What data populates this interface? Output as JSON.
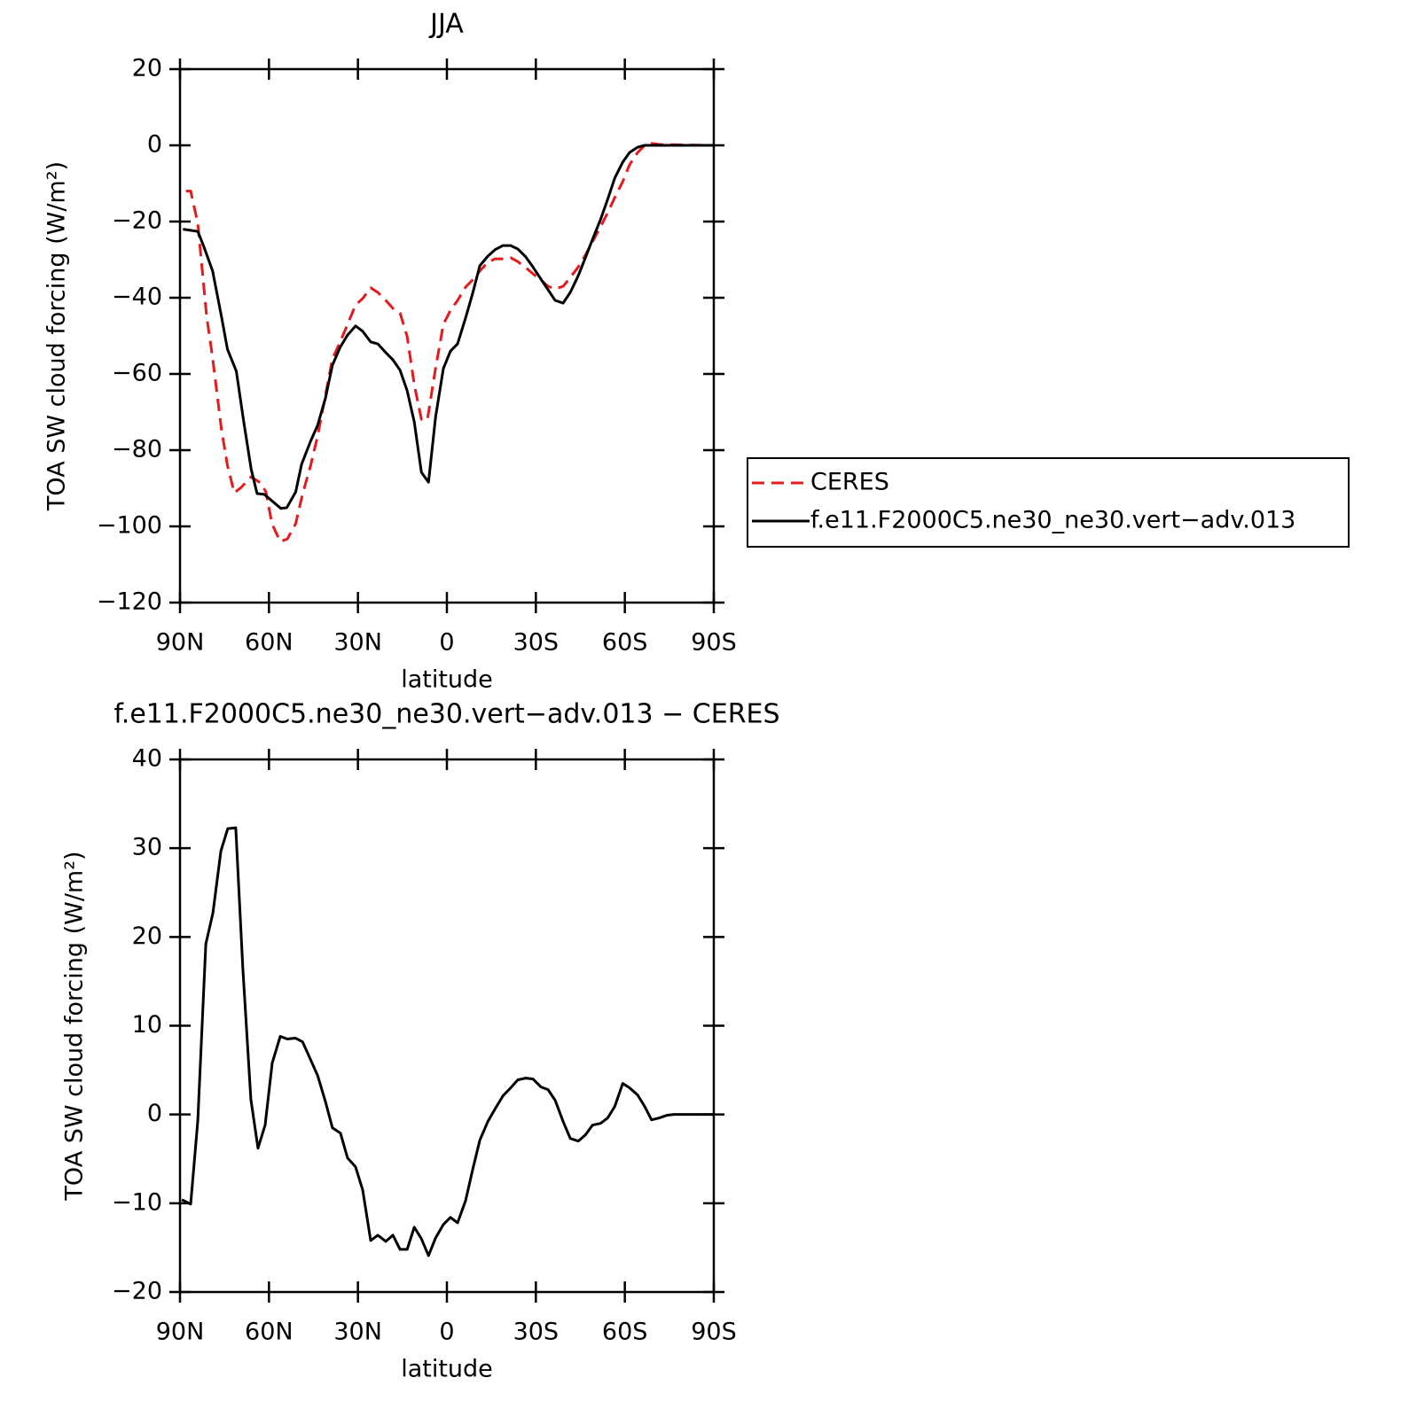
{
  "chart_data": [
    {
      "type": "line",
      "title": "JJA",
      "xlabel": "latitude",
      "ylabel": "TOA SW cloud forcing (W/m²)",
      "xlim": [
        90,
        -90
      ],
      "xticks": [
        {
          "value": 90,
          "label": "90N"
        },
        {
          "value": 60,
          "label": "60N"
        },
        {
          "value": 30,
          "label": "30N"
        },
        0,
        {
          "value": -30,
          "label": "30S"
        },
        {
          "value": -60,
          "label": "60S"
        },
        {
          "value": -90,
          "label": "90S"
        }
      ],
      "ylim": [
        -120,
        20
      ],
      "yticks": [
        {
          "value": -120,
          "label": "−120"
        },
        {
          "value": -100,
          "label": "−100"
        },
        {
          "value": -80,
          "label": "−80"
        },
        {
          "value": -60,
          "label": "−60"
        },
        {
          "value": -40,
          "label": "−40"
        },
        {
          "value": -20,
          "label": "−20"
        },
        0,
        20
      ],
      "legend": "right",
      "series": [
        {
          "name": "CERES",
          "color": "#e41a1c",
          "dash": true,
          "x": [
            88,
            86.4,
            84,
            81,
            79,
            76,
            74,
            71.7,
            69.4,
            66,
            62.8,
            61,
            59,
            56.2,
            53.8,
            51,
            48.7,
            46,
            43.6,
            41,
            38.6,
            35.9,
            33.5,
            30.8,
            28.4,
            25.7,
            23.3,
            20.6,
            18.2,
            15.8,
            13.4,
            11,
            8.6,
            6.6,
            3.8,
            1.2,
            -1.2,
            -3.6,
            -6.3,
            -8.7,
            -11.1,
            -13.8,
            -16.2,
            -18.9,
            -21.5,
            -23.9,
            -26.6,
            -29,
            -31.7,
            -34.1,
            -36.5,
            -39.2,
            -41.6,
            -44.3,
            -46.7,
            -49.1,
            -51.8,
            -54.2,
            -56.6,
            -59.3,
            -61.6,
            -64.3,
            -66.7,
            -69,
            -72,
            -90
          ],
          "values": [
            -12,
            -12,
            -20.5,
            -45,
            -55.8,
            -74.7,
            -84,
            -91.2,
            -89.8,
            -87,
            -88.6,
            -91,
            -99.3,
            -104,
            -103.3,
            -99.3,
            -91.6,
            -84.2,
            -76.3,
            -65.8,
            -56,
            -51.4,
            -47,
            -41.9,
            -40.2,
            -37.4,
            -38.6,
            -40.7,
            -42.8,
            -44,
            -50.2,
            -62.8,
            -71.9,
            -72.1,
            -58.4,
            -47,
            -43.3,
            -40.7,
            -37.2,
            -35.3,
            -33,
            -30.7,
            -29.8,
            -29.8,
            -29.5,
            -30.5,
            -32.1,
            -33.7,
            -35.3,
            -37,
            -37.7,
            -37,
            -34.7,
            -31.9,
            -28.8,
            -25.3,
            -21.4,
            -17.7,
            -13.7,
            -9.5,
            -5.1,
            -1.9,
            0,
            0.5,
            0.2,
            0
          ]
        },
        {
          "name": "f.e11.F2000C5.ne30_ne30.vert−adv.013",
          "color": "#000000",
          "dash": false,
          "x": [
            89,
            84,
            82,
            79,
            76,
            74,
            71,
            68.5,
            66,
            64,
            61.6,
            59,
            56,
            54,
            51,
            49,
            46,
            43.6,
            41,
            38.6,
            36,
            33.5,
            30.8,
            28.4,
            25.7,
            23.3,
            20.6,
            18.2,
            15.8,
            13.4,
            11,
            8.6,
            6.2,
            3.8,
            1.2,
            -1.2,
            -3.6,
            -6.3,
            -8.7,
            -11.1,
            -13.8,
            -16.2,
            -18.9,
            -21.5,
            -23.9,
            -26.6,
            -29,
            -31.7,
            -34.1,
            -36.5,
            -39.2,
            -41.6,
            -44.3,
            -46.7,
            -49.1,
            -51.8,
            -54.2,
            -56.6,
            -59.3,
            -61.6,
            -64.3,
            -66.7,
            -90
          ],
          "values": [
            -22,
            -22.6,
            -26.5,
            -33,
            -45,
            -53.5,
            -59.3,
            -72.6,
            -85,
            -91.4,
            -91.6,
            -93.3,
            -95.3,
            -95.1,
            -91,
            -83.7,
            -77.7,
            -73.5,
            -66.5,
            -57.7,
            -53,
            -49.8,
            -47.4,
            -48.8,
            -51.6,
            -52.1,
            -54.4,
            -56.3,
            -59,
            -64.4,
            -72.6,
            -85.8,
            -88.4,
            -71.2,
            -58.6,
            -54,
            -52.1,
            -45.3,
            -38.8,
            -31.6,
            -29.1,
            -27.4,
            -26.3,
            -26.3,
            -27.2,
            -29.3,
            -31.9,
            -35.1,
            -37.9,
            -40.7,
            -41.4,
            -38.6,
            -34.2,
            -29.5,
            -24.7,
            -19.5,
            -14.2,
            -8.6,
            -4.4,
            -1.9,
            -0.5,
            0,
            0
          ]
        }
      ]
    },
    {
      "type": "line",
      "title": "f.e11.F2000C5.ne30_ne30.vert−adv.013 − CERES",
      "xlabel": "latitude",
      "ylabel": "TOA SW cloud forcing (W/m²)",
      "xlim": [
        90,
        -90
      ],
      "xticks": [
        {
          "value": 90,
          "label": "90N"
        },
        {
          "value": 60,
          "label": "60N"
        },
        {
          "value": 30,
          "label": "30N"
        },
        0,
        {
          "value": -30,
          "label": "30S"
        },
        {
          "value": -60,
          "label": "60S"
        },
        {
          "value": -90,
          "label": "90S"
        }
      ],
      "ylim": [
        -20,
        40
      ],
      "yticks": [
        {
          "value": -20,
          "label": "−20"
        },
        {
          "value": -10,
          "label": "−10"
        },
        0,
        10,
        20,
        30,
        40
      ],
      "series": [
        {
          "color": "#000000",
          "dash": false,
          "x": [
            89.4,
            86.4,
            84,
            81.3,
            78.9,
            76.2,
            73.9,
            71.2,
            68.8,
            66.1,
            63.7,
            61.3,
            58.9,
            56.2,
            53.8,
            51.1,
            48.7,
            46,
            43.6,
            41,
            38.6,
            35.9,
            33.5,
            30.8,
            28.4,
            25.7,
            23.3,
            20.6,
            18.2,
            15.8,
            13.4,
            11,
            8.6,
            6.2,
            3.8,
            1.2,
            -1.2,
            -3.6,
            -6.3,
            -8.7,
            -11.1,
            -13.8,
            -16.2,
            -18.9,
            -21.5,
            -23.9,
            -26.6,
            -29,
            -31.7,
            -34.1,
            -36.5,
            -39.2,
            -41.6,
            -44.3,
            -46.7,
            -49.1,
            -51.8,
            -54.2,
            -56.6,
            -59.3,
            -61.6,
            -64.3,
            -66.7,
            -69,
            -71.5,
            -74.1,
            -76.5,
            -90
          ],
          "values": [
            -9.6,
            -10.1,
            -0.7,
            19.2,
            22.7,
            29.7,
            32.2,
            32.3,
            16.4,
            1.7,
            -3.8,
            -1.2,
            5.8,
            8.8,
            8.5,
            8.6,
            8.2,
            6.2,
            4.4,
            1.5,
            -1.5,
            -2.1,
            -4.9,
            -5.9,
            -8.5,
            -14.2,
            -13.6,
            -14.3,
            -13.6,
            -15.2,
            -15.2,
            -12.7,
            -14,
            -15.9,
            -13.9,
            -12.4,
            -11.6,
            -12.2,
            -9.7,
            -6.2,
            -2.9,
            -0.8,
            0.6,
            2.1,
            3,
            3.9,
            4.1,
            4,
            3.1,
            2.8,
            1.6,
            -0.8,
            -2.7,
            -3,
            -2.3,
            -1.2,
            -1,
            -0.4,
            0.9,
            3.5,
            3,
            2.2,
            0.9,
            -0.6,
            -0.4,
            -0.1,
            0,
            0
          ]
        }
      ]
    }
  ]
}
